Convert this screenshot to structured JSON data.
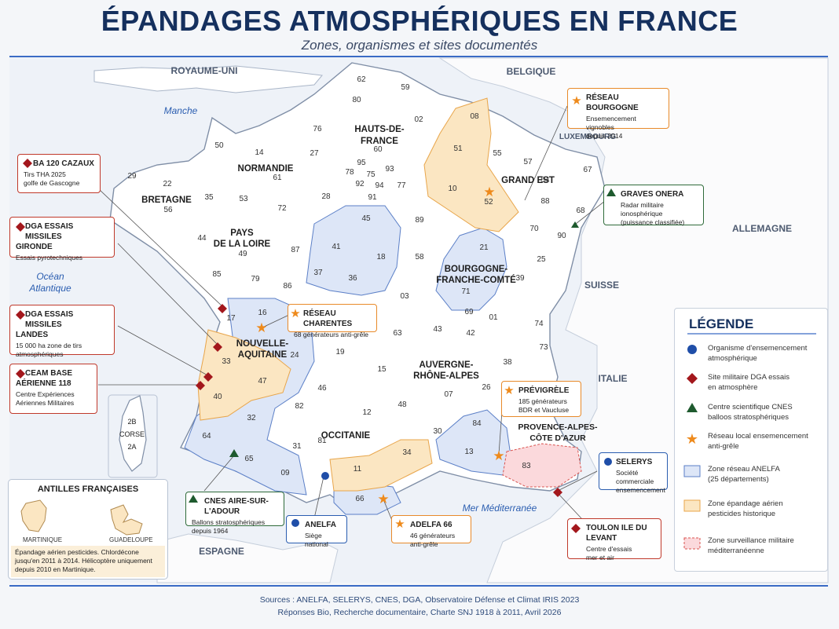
{
  "header": {
    "title": "ÉPANDAGES ATMOSPHÉRIQUES EN FRANCE",
    "subtitle": "Zones, organismes et sites documentés"
  },
  "countries": {
    "uk": "ROYAUME-UNI",
    "belgium": "BELGIQUE",
    "luxembourg": "LUXEMBOURG",
    "germany": "ALLEMAGNE",
    "switzerland": "SUISSE",
    "italy": "ITALIE",
    "spain": "ESPAGNE"
  },
  "seas": {
    "manche": "Manche",
    "ocean_l1": "Océan",
    "ocean_l2": "Atlantique",
    "med": "Mer  Méditerranée"
  },
  "regions": {
    "hdf_l1": "HAUTS-DE-",
    "hdf_l2": "FRANCE",
    "normandie": "NORMANDIE",
    "bretagne": "BRETAGNE",
    "grand_est": "GRAND EST",
    "pdl_l1": "PAYS",
    "pdl_l2": "DE LA LOIRE",
    "bfc_l1": "BOURGOGNE-",
    "bfc_l2": "FRANCHE-COMTÉ",
    "na_l1": "NOUVELLE-",
    "na_l2": "AQUITAINE",
    "ara_l1": "AUVERGNE-",
    "ara_l2": "RHÔNE-ALPES",
    "occitanie": "OCCITANIE",
    "paca_l1": "PROVENCE-ALPES-",
    "paca_l2": "CÔTE D'AZUR",
    "corse": "CORSE",
    "corse_2b": "2B",
    "corse_2a": "2A"
  },
  "departments": [
    "62",
    "59",
    "80",
    "02",
    "76",
    "60",
    "50",
    "14",
    "27",
    "61",
    "95",
    "78",
    "92",
    "93",
    "75",
    "94",
    "77",
    "91",
    "08",
    "51",
    "55",
    "57",
    "67",
    "10",
    "52",
    "54",
    "88",
    "68",
    "70",
    "90",
    "25",
    "39",
    "21",
    "89",
    "58",
    "71",
    "28",
    "45",
    "41",
    "18",
    "36",
    "37",
    "72",
    "53",
    "35",
    "22",
    "29",
    "56",
    "44",
    "49",
    "85",
    "79",
    "86",
    "17",
    "16",
    "24",
    "33",
    "47",
    "40",
    "64",
    "32",
    "65",
    "09",
    "31",
    "82",
    "46",
    "19",
    "87",
    "23",
    "03",
    "63",
    "15",
    "43",
    "42",
    "69",
    "01",
    "74",
    "73",
    "38",
    "26",
    "07",
    "48",
    "12",
    "81",
    "11",
    "34",
    "66",
    "30",
    "84",
    "13",
    "83",
    "04",
    "05",
    "06"
  ],
  "callouts": {
    "ba120": {
      "title": "BA 120 CAZAUX",
      "desc1": "Tirs THA 2025",
      "desc2": "golfe de Gascogne"
    },
    "gironde": {
      "title1": "DGA ESSAIS MISSILES",
      "title2": "GIRONDE",
      "desc1": "Essais pyrotechniques"
    },
    "landes": {
      "title1": "DGA ESSAIS MISSILES",
      "title2": "LANDES",
      "desc1": "15 000 ha zone de tirs",
      "desc2": "atmosphériques"
    },
    "ceam": {
      "title1": "CEAM BASE",
      "title2": "AÉRIENNE 118",
      "desc1": "Centre Expériences",
      "desc2": "Aériennes Militaires"
    },
    "charentes": {
      "title": "RÉSEAU CHARENTES",
      "desc1": "68 générateurs anti-grêle"
    },
    "bourgogne": {
      "title": "RÉSEAU BOURGOGNE",
      "desc1": "Ensemencement vignobles",
      "desc2": "depuis 2014"
    },
    "onera": {
      "title": "GRAVES ONERA",
      "desc1": "Radar militaire ionosphérique",
      "desc2": "(puissance classifiée)"
    },
    "previgrele": {
      "title": "PRÉVIGRÈLE",
      "desc1": "185 générateurs",
      "desc2": "BDR et Vaucluse"
    },
    "selerys": {
      "title": "SELERYS",
      "desc1": "Société commerciale",
      "desc2": "ensemencement"
    },
    "toulon": {
      "title": "TOULON ILE DU LEVANT",
      "desc1": "Centre d'essais",
      "desc2": "mer et air"
    },
    "adelfa": {
      "title": "ADELFA 66",
      "desc1": "46 générateurs anti-grêle"
    },
    "anelfa": {
      "title": "ANELFA",
      "desc1": "Siège national"
    },
    "cnes": {
      "title": "CNES AIRE-SUR-L'ADOUR",
      "desc1": "Ballons stratosphériques",
      "desc2": "depuis 1964"
    }
  },
  "legend": {
    "title": "LÉGENDE",
    "items": [
      {
        "l1": "Organisme d'ensemencement",
        "l2": "atmosphérique"
      },
      {
        "l1": "Site militaire DGA essais",
        "l2": "en atmosphère"
      },
      {
        "l1": "Centre scientifique CNES",
        "l2": "balloos stratosphériques"
      },
      {
        "l1": "Réseau local ensemencement",
        "l2": "anti-grêle"
      },
      {
        "l1": "Zone réseau ANELFA",
        "l2": "(25 départements)"
      },
      {
        "l1": "Zone épandage aérien",
        "l2": "pesticides historique"
      },
      {
        "l1": "Zone surveillance militaire",
        "l2": "méditerranéenne"
      }
    ]
  },
  "antilles": {
    "title": "ANTILLES FRANÇAISES",
    "martinique": "MARTINIQUE",
    "guadeloupe": "GUADELOUPE",
    "note1": "Épandage aérien pesticides. Chlordécone",
    "note2": "jusqu'en 2011 à 2014. Hélicoptère uniquement",
    "note3": "depuis 2010 en Martinique."
  },
  "sources": {
    "line1": "Sources : ANELFA, SELERYS, CNES, DGA, Observatoire Défense et Climat IRIS 2023",
    "line2": "Réponses Bio, Recherche documentaire, Charte SNJ 1918 à 2011,  Avril 2026"
  },
  "colors": {
    "title": "#15305e",
    "rule": "#3a6bc5",
    "organisme": "#1f4ea8",
    "military": "#a3171c",
    "cnes": "#1e5a2e",
    "local": "#ee8a1c",
    "anelfa_zone": "#dde6f7",
    "pesticide_zone": "#fbe6c2",
    "med_zone": "#fbd9dc"
  }
}
